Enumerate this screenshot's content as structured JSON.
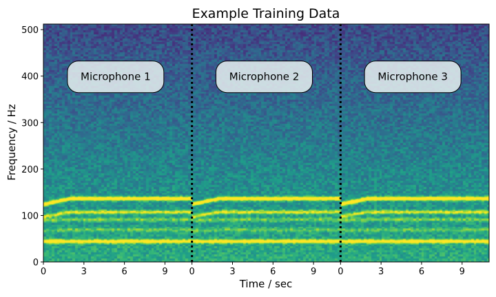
{
  "chart_data": {
    "type": "heatmap",
    "title": "Example Training Data",
    "xlabel": "Time / sec",
    "ylabel": "Frequency / Hz",
    "ylim": [
      0,
      512
    ],
    "y_ticks": [
      0,
      100,
      200,
      300,
      400,
      500
    ],
    "segment_duration_sec": 11,
    "x_ticks_per_segment": [
      0,
      3,
      6,
      9
    ],
    "colormap": "viridis",
    "segments": [
      {
        "label": "Microphone 1"
      },
      {
        "label": "Microphone 2"
      },
      {
        "label": "Microphone 3"
      }
    ],
    "separator_style": "dotted",
    "harmonics_hz": [
      {
        "start_hz": 125,
        "end_hz": 137,
        "rise_sec": 2.0,
        "strength": 0.75
      },
      {
        "start_hz": 98,
        "end_hz": 108,
        "rise_sec": 2.0,
        "strength": 0.45
      },
      {
        "start_hz": 90,
        "end_hz": 92,
        "rise_sec": 2.0,
        "strength": 0.25
      },
      {
        "start_hz": 45,
        "end_hz": 45,
        "rise_sec": 2.0,
        "strength": 0.55
      },
      {
        "start_hz": 68,
        "end_hz": 70,
        "rise_sec": 2.0,
        "strength": 0.2
      }
    ]
  }
}
